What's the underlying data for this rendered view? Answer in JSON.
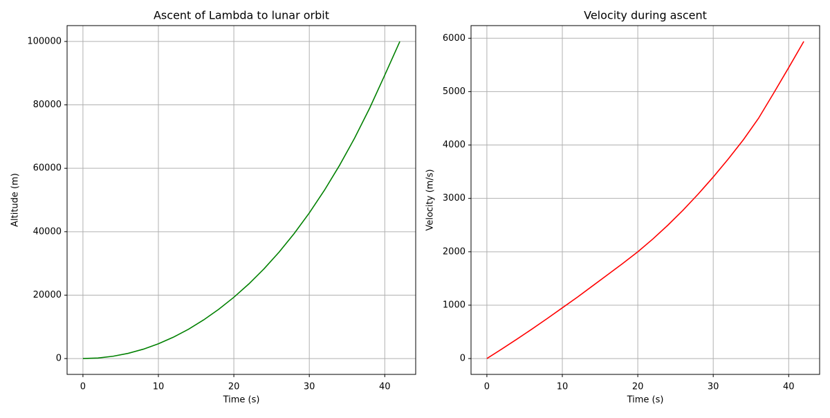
{
  "chart_data": [
    {
      "type": "line",
      "title": "Ascent of Lambda to lunar orbit",
      "xlabel": "Time (s)",
      "ylabel": "Altitude (m)",
      "x": [
        0,
        2,
        4,
        6,
        8,
        10,
        12,
        14,
        16,
        18,
        20,
        22,
        24,
        26,
        28,
        30,
        32,
        34,
        36,
        38,
        40,
        42
      ],
      "series": [
        {
          "name": "Altitude",
          "color": "#008000",
          "values": [
            0,
            180,
            725,
            1645,
            2950,
            4650,
            6750,
            9260,
            12190,
            15540,
            19320,
            23560,
            28300,
            33580,
            39440,
            45920,
            53060,
            60900,
            69500,
            78970,
            89390,
            100000
          ]
        }
      ],
      "xlim": [
        -2.1,
        44.1
      ],
      "ylim": [
        -5000,
        105000
      ],
      "xticks": [
        0,
        10,
        20,
        30,
        40
      ],
      "yticks": [
        0,
        20000,
        40000,
        60000,
        80000,
        100000
      ],
      "grid": true
    },
    {
      "type": "line",
      "title": "Velocity during ascent",
      "xlabel": "Time (s)",
      "ylabel": "Velocity (m/s)",
      "x": [
        0,
        2,
        4,
        6,
        8,
        10,
        12,
        14,
        16,
        18,
        20,
        22,
        24,
        26,
        28,
        30,
        32,
        34,
        36,
        38,
        40,
        42
      ],
      "series": [
        {
          "name": "Velocity",
          "color": "#ff0000",
          "values": [
            0,
            180,
            365,
            555,
            750,
            950,
            1150,
            1360,
            1570,
            1780,
            2000,
            2240,
            2500,
            2780,
            3080,
            3400,
            3740,
            4100,
            4500,
            4970,
            5450,
            5940
          ]
        }
      ],
      "xlim": [
        -2.1,
        44.1
      ],
      "ylim": [
        -297,
        6237
      ],
      "xticks": [
        0,
        10,
        20,
        30,
        40
      ],
      "yticks": [
        0,
        1000,
        2000,
        3000,
        4000,
        5000,
        6000
      ],
      "grid": true
    }
  ]
}
